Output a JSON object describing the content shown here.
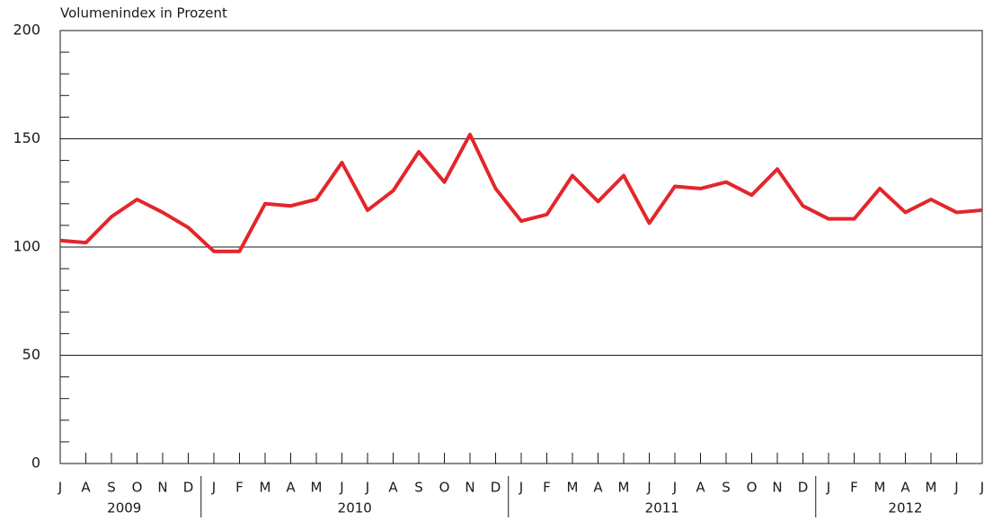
{
  "chart_data": {
    "type": "line",
    "title": "Volumenindex in Prozent",
    "categories": [
      "J",
      "A",
      "S",
      "O",
      "N",
      "D",
      "J",
      "F",
      "M",
      "A",
      "M",
      "J",
      "J",
      "A",
      "S",
      "O",
      "N",
      "D",
      "J",
      "F",
      "M",
      "A",
      "M",
      "J",
      "J",
      "A",
      "S",
      "O",
      "N",
      "D",
      "J",
      "F",
      "M",
      "A",
      "M",
      "J",
      "J"
    ],
    "years": [
      "2009",
      "2010",
      "2011",
      "2012"
    ],
    "series": [
      {
        "name": "Volumenindex",
        "color": "#e3262b",
        "values": [
          103,
          102,
          114,
          122,
          116,
          109,
          98,
          98,
          120,
          119,
          122,
          139,
          117,
          126,
          144,
          130,
          152,
          127,
          112,
          115,
          133,
          121,
          133,
          111,
          128,
          127,
          130,
          124,
          136,
          119,
          113,
          113,
          127,
          116,
          122,
          116,
          117
        ]
      }
    ],
    "ylim": [
      0,
      200
    ],
    "yticks": [
      0,
      50,
      100,
      150,
      200
    ],
    "minor_yticks": [
      10,
      20,
      30,
      40,
      60,
      70,
      80,
      90,
      110,
      120,
      130,
      140,
      160,
      170,
      180,
      190
    ],
    "grid": true
  }
}
